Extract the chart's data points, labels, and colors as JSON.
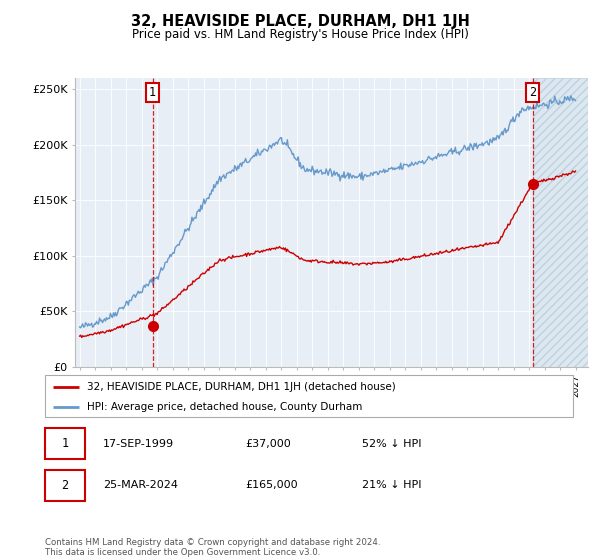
{
  "title": "32, HEAVISIDE PLACE, DURHAM, DH1 1JH",
  "subtitle": "Price paid vs. HM Land Registry's House Price Index (HPI)",
  "ylim": [
    0,
    260000
  ],
  "yticks": [
    0,
    50000,
    100000,
    150000,
    200000,
    250000
  ],
  "ytick_labels": [
    "£0",
    "£50K",
    "£100K",
    "£150K",
    "£200K",
    "£250K"
  ],
  "x_start_year": 1995,
  "x_end_year": 2027,
  "sale1_date": 1999.71,
  "sale1_price": 37000,
  "sale1_label": "1",
  "sale2_date": 2024.23,
  "sale2_price": 165000,
  "sale2_label": "2",
  "line_color_property": "#cc0000",
  "line_color_hpi": "#6699cc",
  "legend_label_property": "32, HEAVISIDE PLACE, DURHAM, DH1 1JH (detached house)",
  "legend_label_hpi": "HPI: Average price, detached house, County Durham",
  "annotation1_date": "17-SEP-1999",
  "annotation1_price": "£37,000",
  "annotation1_hpi": "52% ↓ HPI",
  "annotation2_date": "25-MAR-2024",
  "annotation2_price": "£165,000",
  "annotation2_hpi": "21% ↓ HPI",
  "footer": "Contains HM Land Registry data © Crown copyright and database right 2024.\nThis data is licensed under the Open Government Licence v3.0."
}
